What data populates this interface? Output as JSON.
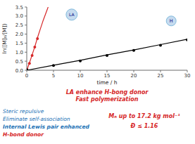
{
  "chart_data": {
    "type": "line",
    "xlabel": "time / h",
    "ylabel": "ln([M]₀/[M])",
    "xlim": [
      0,
      30
    ],
    "ylim": [
      0,
      3.5
    ],
    "xticks": [
      0,
      5,
      10,
      15,
      20,
      25,
      30
    ],
    "yticks": [
      {
        "value": 0.0,
        "label": "0.0"
      },
      0.5,
      {
        "value": 1.0,
        "label": "1.0"
      },
      1.5,
      {
        "value": 2.0,
        "label": "2.0"
      },
      2.5,
      {
        "value": 3.0,
        "label": "3.0"
      },
      3.5
    ],
    "grid": false,
    "series": [
      {
        "type": "line",
        "color": "#d62728",
        "x": [
          0,
          0.5,
          1.0,
          1.5,
          2.0,
          2.5,
          3.0,
          3.5,
          4.0
        ],
        "values": [
          0.0,
          0.4,
          0.85,
          1.3,
          1.8,
          2.25,
          2.7,
          3.1,
          3.5
        ]
      },
      {
        "type": "scatter",
        "color": "#d62728",
        "x": [
          0.0,
          0.5,
          1.0,
          1.5,
          2.0
        ],
        "values": [
          0.05,
          0.38,
          0.82,
          1.28,
          1.75
        ]
      },
      {
        "type": "line",
        "color": "#000000",
        "x": [
          0,
          5,
          10,
          15,
          20,
          25,
          30
        ],
        "values": [
          0.0,
          0.28,
          0.55,
          0.85,
          1.12,
          1.42,
          1.72
        ]
      },
      {
        "type": "scatter",
        "color": "#000000",
        "x": [
          0,
          5,
          10,
          15,
          20,
          25,
          30
        ],
        "values": [
          0.03,
          0.26,
          0.52,
          0.82,
          1.1,
          1.38,
          1.68
        ]
      }
    ],
    "annotations": [
      {
        "text": "LA",
        "color": "#000080"
      },
      {
        "text": "H",
        "color": "#000080"
      },
      {
        "text": "LA enhance H-bong donor",
        "color": "#d62728"
      },
      {
        "text": "Fast polymerization",
        "color": "#d62728"
      },
      {
        "text": "Steric repulsive",
        "color": "#2171b5"
      },
      {
        "text": "Eliminate self-association",
        "color": "#2171b5"
      },
      {
        "text": "Internal Lewis pair enhanced",
        "color": "#2171b5"
      },
      {
        "text": "H-bond donor",
        "color": "#d62728"
      },
      {
        "text": "Mₙ up to 17.2  kg mol⁻¹",
        "color": "#d62728"
      },
      {
        "text": "Đ ≤ 1.16",
        "color": "#d62728"
      }
    ]
  }
}
